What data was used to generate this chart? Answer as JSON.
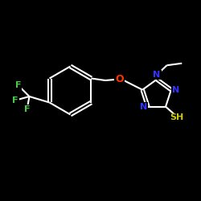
{
  "background_color": "#000000",
  "bond_color": "#ffffff",
  "atom_colors": {
    "F": "#44cc44",
    "O": "#ff3300",
    "N": "#3333ff",
    "S": "#cccc00",
    "H": "#ffffff",
    "C": "#ffffff"
  },
  "figsize": [
    2.5,
    2.5
  ],
  "dpi": 100,
  "xlim": [
    0,
    10
  ],
  "ylim": [
    0,
    10
  ]
}
